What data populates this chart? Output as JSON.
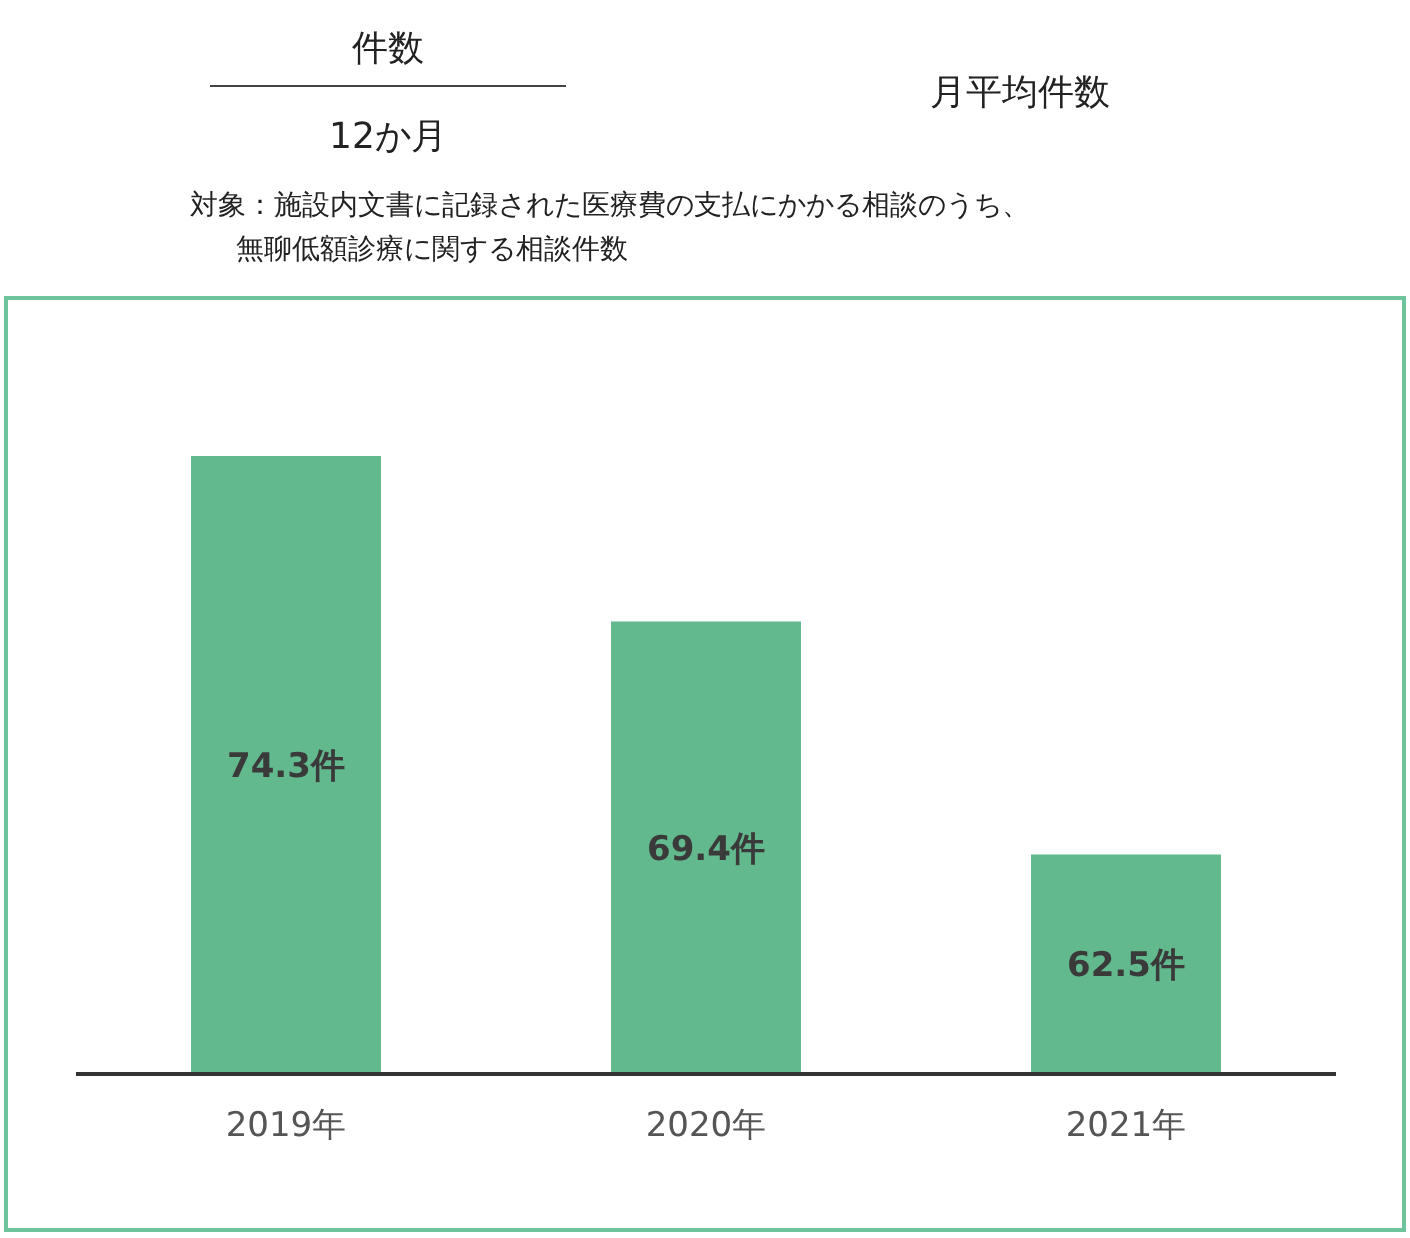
{
  "chart_data": {
    "type": "bar",
    "title": "月平均件数",
    "annotations": [
      "件数",
      "12か月"
    ],
    "subtitle": "対象：施設内文書に記録された医療費の支払にかかる相談のうち、無聊低額診療に関する相談件数",
    "categories": [
      "2019年",
      "2020年",
      "2021年"
    ],
    "values": [
      74.3,
      69.4,
      62.5
    ],
    "value_labels": [
      "74.3件",
      "69.4件",
      "62.5件"
    ],
    "color": "#62b98e",
    "ylim": [
      56,
      74.3
    ]
  }
}
